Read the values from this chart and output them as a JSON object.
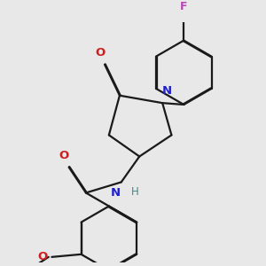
{
  "bg_color": "#e8e8e8",
  "bond_color": "#1a1a1a",
  "N_color": "#2020cc",
  "O_color": "#cc2020",
  "F_color": "#bb44bb",
  "H_color": "#448888",
  "lw": 1.6,
  "dbo": 0.013,
  "figsize": [
    3.0,
    3.0
  ],
  "dpi": 100,
  "xlim": [
    -0.5,
    3.5
  ],
  "ylim": [
    -0.5,
    4.0
  ]
}
